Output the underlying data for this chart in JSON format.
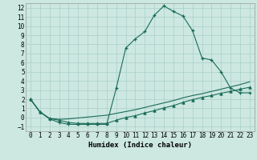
{
  "xlabel": "Humidex (Indice chaleur)",
  "bg_color": "#cce8e0",
  "grid_color": "#aacfc8",
  "line_color": "#1a6b5a",
  "xlim": [
    -0.5,
    23.5
  ],
  "ylim": [
    -1.5,
    12.5
  ],
  "xticks": [
    0,
    1,
    2,
    3,
    4,
    5,
    6,
    7,
    8,
    9,
    10,
    11,
    12,
    13,
    14,
    15,
    16,
    17,
    18,
    19,
    20,
    21,
    22,
    23
  ],
  "yticks": [
    -1,
    0,
    1,
    2,
    3,
    4,
    5,
    6,
    7,
    8,
    9,
    10,
    11,
    12
  ],
  "font_size": 5.5,
  "xlabel_font_size": 6.5,
  "line1_x": [
    0,
    1,
    2,
    3,
    4,
    5,
    6,
    7,
    8,
    9,
    10,
    11,
    12,
    13,
    14,
    15,
    16,
    17,
    18,
    19,
    20,
    21,
    22,
    23
  ],
  "line1_y": [
    2.0,
    0.6,
    -0.15,
    -0.55,
    -0.75,
    -0.75,
    -0.75,
    -0.75,
    -0.75,
    3.2,
    7.6,
    8.6,
    9.4,
    11.2,
    12.2,
    11.6,
    11.1,
    9.5,
    6.5,
    6.3,
    5.0,
    3.2,
    2.7,
    2.7
  ],
  "line2_x": [
    0,
    1,
    2,
    3,
    4,
    5,
    6,
    7,
    8,
    9,
    10,
    11,
    12,
    13,
    14,
    15,
    16,
    17,
    18,
    19,
    20,
    21,
    22,
    23
  ],
  "line2_y": [
    2.0,
    0.6,
    -0.1,
    -0.2,
    -0.15,
    -0.05,
    0.05,
    0.15,
    0.25,
    0.45,
    0.65,
    0.85,
    1.1,
    1.35,
    1.6,
    1.85,
    2.15,
    2.4,
    2.6,
    2.85,
    3.1,
    3.35,
    3.6,
    3.9
  ],
  "line3_x": [
    0,
    1,
    2,
    3,
    4,
    5,
    6,
    7,
    8,
    9,
    10,
    11,
    12,
    13,
    14,
    15,
    16,
    17,
    18,
    19,
    20,
    21,
    22,
    23
  ],
  "line3_y": [
    2.0,
    0.6,
    -0.1,
    -0.3,
    -0.55,
    -0.65,
    -0.65,
    -0.65,
    -0.65,
    -0.3,
    0.0,
    0.2,
    0.5,
    0.75,
    1.05,
    1.3,
    1.65,
    1.95,
    2.2,
    2.4,
    2.65,
    2.85,
    3.1,
    3.3
  ]
}
